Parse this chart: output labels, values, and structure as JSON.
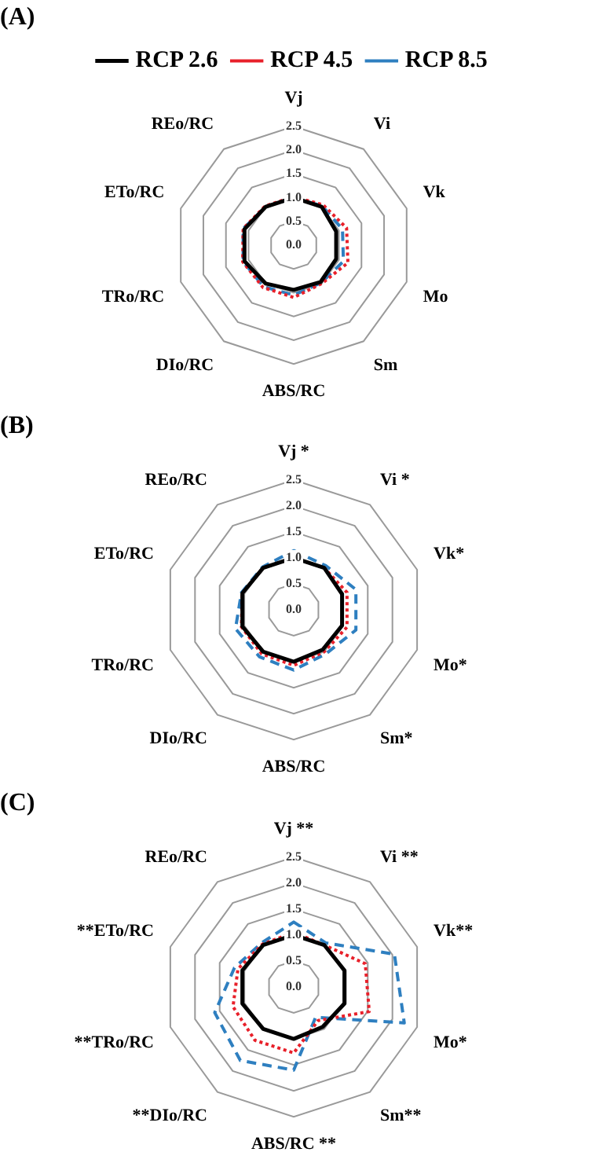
{
  "chart_data": [
    {
      "type": "radar",
      "title": "(A)",
      "categories": [
        "Vj",
        "Vi",
        "Vk",
        "Mo",
        "Sm",
        "ABS/RC",
        "DIo/RC",
        "TRo/RC",
        "ETo/RC",
        "REo/RC"
      ],
      "ylim": [
        0,
        2.5
      ],
      "yticks": [
        {
          "value": 0,
          "label": "0.0"
        },
        0.5,
        {
          "value": 1,
          "label": "1.0"
        },
        1.5,
        {
          "value": 2,
          "label": "2.0"
        },
        2.5
      ],
      "grid": true,
      "legend": "top",
      "marker": "none",
      "series": [
        {
          "name": "RCP 2.6",
          "color": "#000000",
          "line_style": "solid",
          "values": [
            1.0,
            1.0,
            0.94,
            0.94,
            0.96,
            0.94,
            1.0,
            1.09,
            1.09,
            1.0
          ]
        },
        {
          "name": "RCP 4.5",
          "color": "#e8202a",
          "line_style": "dotted",
          "values": [
            1.02,
            1.05,
            1.17,
            1.2,
            1.0,
            1.1,
            1.1,
            1.13,
            1.12,
            1.02
          ]
        },
        {
          "name": "RCP 8.5",
          "color": "#2e7fc0",
          "line_style": "dashed",
          "values": [
            1.0,
            1.02,
            1.08,
            1.1,
            0.98,
            1.05,
            1.08,
            1.12,
            1.12,
            1.0
          ]
        }
      ]
    },
    {
      "type": "radar",
      "title": "(B)",
      "categories": [
        "Vj *",
        "Vi *",
        "Vk*",
        "Mo*",
        "Sm*",
        "ABS/RC",
        "DIo/RC",
        "TRo/RC",
        "ETo/RC",
        "REo/RC"
      ],
      "ylim": [
        0,
        2.5
      ],
      "yticks": [
        {
          "value": 0,
          "label": "0.0"
        },
        0.5,
        {
          "value": 1,
          "label": "1.0"
        },
        1.5,
        {
          "value": 2,
          "label": "2.0"
        },
        2.5
      ],
      "grid": true,
      "marker": "none",
      "series": [
        {
          "color": "#000000",
          "line_style": "solid",
          "values": [
            1.0,
            1.0,
            0.98,
            0.98,
            0.95,
            1.0,
            1.0,
            1.04,
            1.04,
            1.0
          ]
        },
        {
          "color": "#e8202a",
          "line_style": "dotted",
          "values": [
            1.0,
            1.0,
            1.08,
            1.08,
            1.0,
            1.07,
            1.05,
            1.06,
            1.04,
            1.0
          ]
        },
        {
          "color": "#2e7fc0",
          "line_style": "dashed",
          "values": [
            1.14,
            1.05,
            1.26,
            1.26,
            1.05,
            1.16,
            1.12,
            1.18,
            1.06,
            1.02
          ]
        }
      ]
    },
    {
      "type": "radar",
      "title": "(C)",
      "categories": [
        "Vj **",
        "Vi **",
        "Vk**",
        "Mo*",
        "Sm**",
        "ABS/RC **",
        "**DIo/RC",
        "**TRo/RC",
        "**ETo/RC",
        "REo/RC"
      ],
      "ylim": [
        0,
        2.5
      ],
      "yticks": [
        {
          "value": 0,
          "label": "0.0"
        },
        0.5,
        {
          "value": 1,
          "label": "1.0"
        },
        1.5,
        {
          "value": 2,
          "label": "2.0"
        },
        2.5
      ],
      "grid": true,
      "marker": "none",
      "series": [
        {
          "color": "#000000",
          "line_style": "solid",
          "values": [
            1.0,
            1.0,
            1.03,
            1.03,
            0.95,
            1.0,
            1.0,
            1.04,
            1.04,
            1.0
          ]
        },
        {
          "color": "#e8202a",
          "line_style": "dotted",
          "values": [
            1.05,
            1.0,
            1.45,
            1.53,
            0.8,
            1.27,
            1.27,
            1.23,
            1.13,
            1.02
          ]
        },
        {
          "color": "#2e7fc0",
          "line_style": "dashed",
          "values": [
            1.25,
            1.05,
            2.04,
            2.24,
            0.72,
            1.6,
            1.75,
            1.6,
            1.2,
            1.05
          ]
        }
      ]
    }
  ]
}
